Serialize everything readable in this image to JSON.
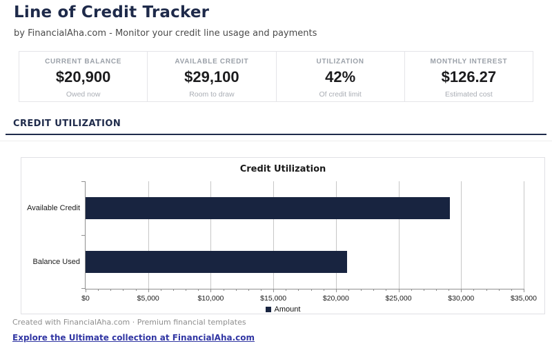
{
  "page": {
    "title": "Line of Credit Tracker",
    "subtitle": "by FinancialAha.com - Monitor your credit line usage and payments"
  },
  "stats": [
    {
      "label": "CURRENT BALANCE",
      "value": "$20,900",
      "caption": "Owed now"
    },
    {
      "label": "AVAILABLE CREDIT",
      "value": "$29,100",
      "caption": "Room to draw"
    },
    {
      "label": "UTILIZATION",
      "value": "42%",
      "caption": "Of credit limit"
    },
    {
      "label": "MONTHLY INTEREST",
      "value": "$126.27",
      "caption": "Estimated cost"
    }
  ],
  "section": {
    "heading": "CREDIT UTILIZATION"
  },
  "chart_data": {
    "type": "bar",
    "orientation": "horizontal",
    "title": "Credit Utilization",
    "categories": [
      "Available Credit",
      "Balance Used"
    ],
    "series": [
      {
        "name": "Amount",
        "values": [
          29100,
          20900
        ]
      }
    ],
    "xlim": [
      0,
      35000
    ],
    "x_tick_step": 5000,
    "x_minor_tick_step": 1000,
    "x_tick_labels": [
      "$0",
      "$5,000",
      "$10,000",
      "$15,000",
      "$20,000",
      "$25,000",
      "$30,000",
      "$35,000"
    ],
    "grid": true,
    "legend_position": "bottom",
    "bar_color": "#182440"
  },
  "footer": {
    "credit": "Created with FinancialAha.com · Premium financial templates",
    "link": "Explore the Ultimate collection at FinancialAha.com"
  },
  "colors": {
    "accent_navy": "#1e2a4a",
    "bar": "#182440",
    "link": "#3136a3",
    "muted_text": "#9ba1a9"
  }
}
